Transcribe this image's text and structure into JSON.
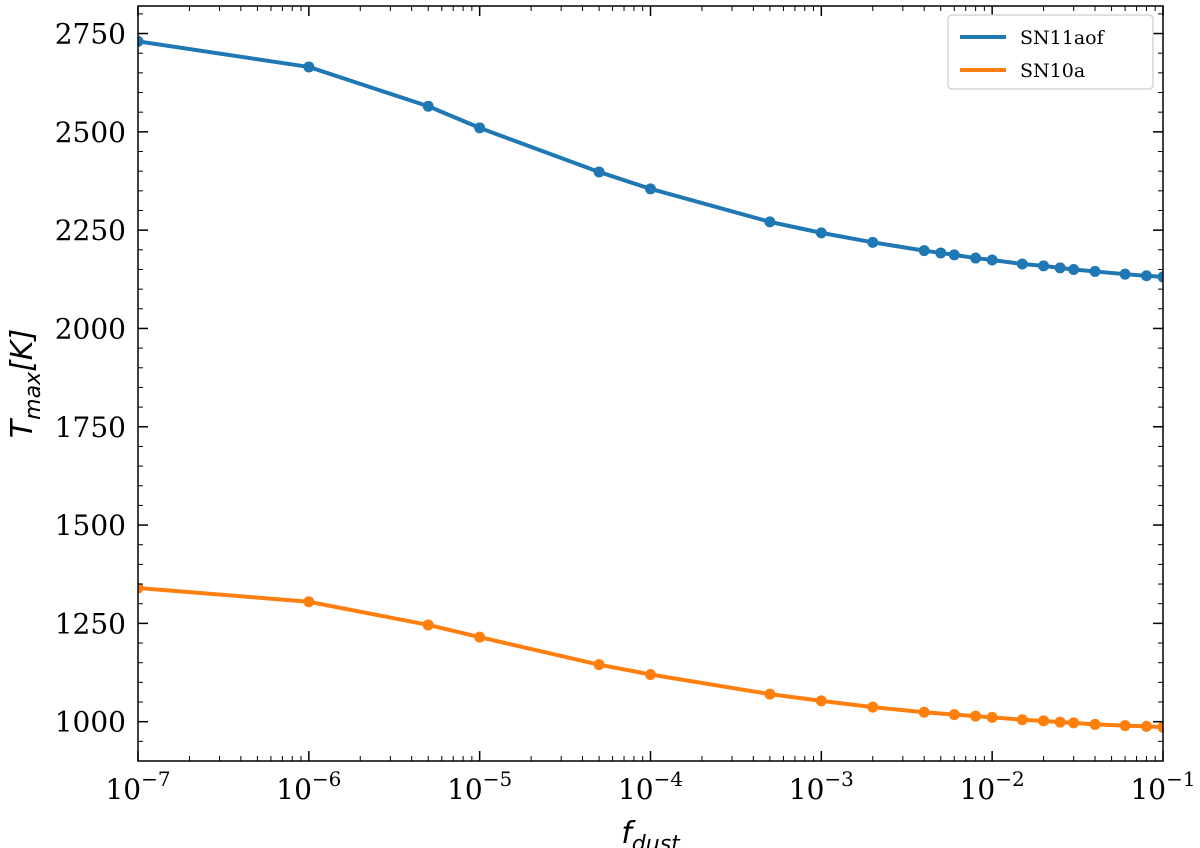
{
  "chart_data": {
    "type": "line",
    "xscale": "log",
    "xlim": [
      1e-07,
      0.1
    ],
    "ylim": [
      900,
      2820
    ],
    "x_ticks": [
      {
        "value": 1e-07,
        "base": "10",
        "exp": "−7"
      },
      {
        "value": 1e-06,
        "base": "10",
        "exp": "−6"
      },
      {
        "value": 1e-05,
        "base": "10",
        "exp": "−5"
      },
      {
        "value": 0.0001,
        "base": "10",
        "exp": "−4"
      },
      {
        "value": 0.001,
        "base": "10",
        "exp": "−3"
      },
      {
        "value": 0.01,
        "base": "10",
        "exp": "−2"
      },
      {
        "value": 0.1,
        "base": "10",
        "exp": "−1"
      }
    ],
    "y_ticks": [
      1000,
      1250,
      1500,
      1750,
      2000,
      2250,
      2500,
      2750
    ],
    "xlabel": {
      "main": "f",
      "sub": "dust"
    },
    "ylabel": {
      "main": "T",
      "sub": "max",
      "unit": "[K]"
    },
    "legend_position": "top-right",
    "grid": false,
    "series": [
      {
        "name": "SN11aof",
        "color": "#1f77b4",
        "x": [
          1e-07,
          1e-06,
          5e-06,
          1e-05,
          5e-05,
          0.0001,
          0.0005,
          0.001,
          0.002,
          0.004,
          0.005,
          0.006,
          0.008,
          0.01,
          0.015,
          0.02,
          0.025,
          0.03,
          0.04,
          0.06,
          0.08,
          0.1
        ],
        "y": [
          2730,
          2665,
          2565,
          2510,
          2398,
          2355,
          2271,
          2243,
          2219,
          2198,
          2192,
          2187,
          2179,
          2174,
          2164,
          2159,
          2154,
          2150,
          2145,
          2138,
          2134,
          2131
        ]
      },
      {
        "name": "SN10a",
        "color": "#ff7f0e",
        "x": [
          1e-07,
          1e-06,
          5e-06,
          1e-05,
          5e-05,
          0.0001,
          0.0005,
          0.001,
          0.002,
          0.004,
          0.006,
          0.008,
          0.01,
          0.015,
          0.02,
          0.025,
          0.03,
          0.04,
          0.06,
          0.08,
          0.1
        ],
        "y": [
          1340,
          1305,
          1246,
          1215,
          1145,
          1120,
          1070,
          1053,
          1037,
          1024,
          1018,
          1014,
          1011,
          1005,
          1002,
          999,
          997,
          993,
          990,
          988,
          986
        ]
      }
    ]
  }
}
